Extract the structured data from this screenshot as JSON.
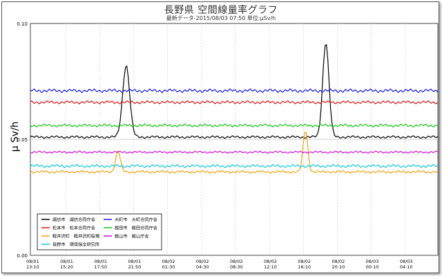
{
  "header": {
    "title": "長野県 空間線量率グラフ",
    "subtitle": "最新データ-2015/08/03 07:50 単位:μSv/h"
  },
  "chart_data": {
    "type": "line",
    "ylabel": "μ Sv/h",
    "ylim": [
      0.0,
      0.1
    ],
    "y_ticks": [
      "0.00",
      "0.05",
      "0.10"
    ],
    "x_tick_labels": [
      [
        "08/01",
        "13:10"
      ],
      [
        "08/01",
        "15:20"
      ],
      [
        "08/01",
        "17:50"
      ],
      [
        "08/01",
        "21:50"
      ],
      [
        "08/02",
        "01:30"
      ],
      [
        "08/02",
        "04:30"
      ],
      [
        "08/02",
        "08:30"
      ],
      [
        "08/02",
        "12:10"
      ],
      [
        "08/02",
        "16:10"
      ],
      [
        "08/02",
        "20:10"
      ],
      [
        "08/03",
        "00:10"
      ],
      [
        "08/03",
        "04:10"
      ]
    ],
    "grid": true,
    "legend_position": "bottom-left",
    "series": [
      {
        "name": "諏訪市　諏訪合同庁舎",
        "color": "#000000",
        "base": 0.051,
        "amp": 0.0006,
        "peaks": [
          {
            "center": 0.235,
            "height": 0.082,
            "width": 0.018
          },
          {
            "center": 0.725,
            "height": 0.092,
            "width": 0.016
          }
        ]
      },
      {
        "name": "大町市　大町合同庁舎",
        "color": "#1515e0",
        "base": 0.071,
        "amp": 0.0008,
        "peaks": []
      },
      {
        "name": "松本市　松本合同庁舎",
        "color": "#e01515",
        "base": 0.066,
        "amp": 0.0007,
        "peaks": []
      },
      {
        "name": "飯田市　飯田合同庁舎",
        "color": "#12c812",
        "base": 0.056,
        "amp": 0.0007,
        "peaks": []
      },
      {
        "name": "軽井沢町　軽井沢町役場",
        "color": "#f0a010",
        "base": 0.036,
        "amp": 0.0006,
        "peaks": [
          {
            "center": 0.215,
            "height": 0.045,
            "width": 0.012
          },
          {
            "center": 0.675,
            "height": 0.054,
            "width": 0.012
          }
        ]
      },
      {
        "name": "飯山市　飯山庁舎",
        "color": "#d010d0",
        "base": 0.0445,
        "amp": 0.0005,
        "peaks": []
      },
      {
        "name": "長野市　環境保全研究所",
        "color": "#10c8d8",
        "base": 0.0385,
        "amp": 0.0007,
        "peaks": []
      }
    ]
  }
}
